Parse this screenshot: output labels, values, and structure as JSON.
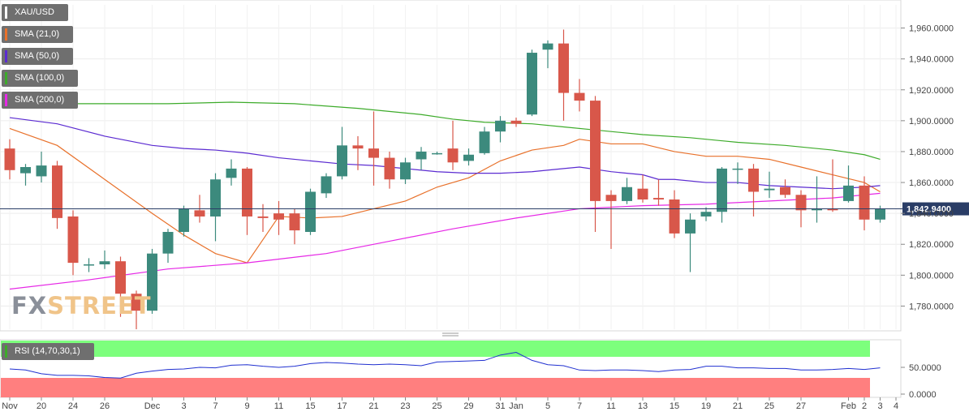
{
  "instrument": "XAU/USD",
  "indicators": [
    {
      "label": "SMA (21,0)",
      "color": "#e8712b"
    },
    {
      "label": "SMA (50,0)",
      "color": "#5b2bd1"
    },
    {
      "label": "SMA (100,0)",
      "color": "#3dab2a"
    },
    {
      "label": "SMA (200,0)",
      "color": "#e628e6"
    }
  ],
  "rsi": {
    "label": "RSI (14,70,30,1)",
    "overbought_color": "#7dff7d",
    "oversold_color": "#ff7f7f",
    "line_color": "#2030d0",
    "ticks": [
      "50.0000",
      "0.0000"
    ],
    "values": [
      47,
      45,
      38,
      35,
      35,
      34,
      31,
      30,
      39,
      43,
      46,
      47,
      50,
      49,
      54,
      55,
      52,
      50,
      52,
      57,
      59,
      58,
      56,
      55,
      56,
      55,
      53,
      60,
      61,
      62,
      63,
      73,
      78,
      63,
      55,
      53,
      45,
      44,
      45,
      45,
      44,
      42,
      45,
      46,
      52,
      52,
      49,
      49,
      48,
      48,
      45,
      45,
      46,
      48,
      46,
      49
    ]
  },
  "watermark": {
    "part1": "FX",
    "part2": "STREET"
  },
  "colors": {
    "up": "#3c8a7d",
    "down": "#d8574a",
    "price_line": "#2a3d66",
    "price_tag": "#2a3d66"
  },
  "chart_data": {
    "type": "candlestick",
    "title": "XAU/USD",
    "ylim": [
      1765,
      1975
    ],
    "y_ticks": [
      "1,960.0000",
      "1,940.0000",
      "1,920.0000",
      "1,900.0000",
      "1,880.0000",
      "1,860.0000",
      "1,840.0000",
      "1,820.0000",
      "1,800.0000",
      "1,780.0000"
    ],
    "x_tick_labels": [
      "Nov",
      "20",
      "24",
      "26",
      "Dec",
      "3",
      "7",
      "9",
      "11",
      "15",
      "17",
      "21",
      "23",
      "25",
      "29",
      "31",
      "Jan",
      "5",
      "7",
      "11",
      "13",
      "15",
      "19",
      "21",
      "25",
      "27",
      "Feb",
      "2",
      "3",
      "4"
    ],
    "current_price": 1842.94,
    "current_price_label": "1,842.9400",
    "candles": [
      {
        "o": 1882,
        "h": 1888,
        "l": 1862,
        "c": 1868
      },
      {
        "o": 1866,
        "h": 1872,
        "l": 1858,
        "c": 1870
      },
      {
        "o": 1864,
        "h": 1880,
        "l": 1860,
        "c": 1871
      },
      {
        "o": 1871,
        "h": 1874,
        "l": 1830,
        "c": 1837
      },
      {
        "o": 1838,
        "h": 1842,
        "l": 1800,
        "c": 1808
      },
      {
        "o": 1807,
        "h": 1811,
        "l": 1802,
        "c": 1807
      },
      {
        "o": 1807,
        "h": 1816,
        "l": 1804,
        "c": 1809
      },
      {
        "o": 1809,
        "h": 1812,
        "l": 1773,
        "c": 1788
      },
      {
        "o": 1788,
        "h": 1790,
        "l": 1765,
        "c": 1777
      },
      {
        "o": 1777,
        "h": 1817,
        "l": 1775,
        "c": 1814
      },
      {
        "o": 1814,
        "h": 1830,
        "l": 1808,
        "c": 1828
      },
      {
        "o": 1828,
        "h": 1845,
        "l": 1825,
        "c": 1843
      },
      {
        "o": 1842,
        "h": 1852,
        "l": 1834,
        "c": 1838
      },
      {
        "o": 1838,
        "h": 1866,
        "l": 1822,
        "c": 1862
      },
      {
        "o": 1863,
        "h": 1875,
        "l": 1858,
        "c": 1869
      },
      {
        "o": 1869,
        "h": 1870,
        "l": 1826,
        "c": 1838
      },
      {
        "o": 1838,
        "h": 1846,
        "l": 1828,
        "c": 1837
      },
      {
        "o": 1840,
        "h": 1848,
        "l": 1826,
        "c": 1836
      },
      {
        "o": 1840,
        "h": 1843,
        "l": 1820,
        "c": 1829
      },
      {
        "o": 1828,
        "h": 1856,
        "l": 1826,
        "c": 1854
      },
      {
        "o": 1853,
        "h": 1866,
        "l": 1850,
        "c": 1864
      },
      {
        "o": 1864,
        "h": 1896,
        "l": 1862,
        "c": 1884
      },
      {
        "o": 1884,
        "h": 1890,
        "l": 1868,
        "c": 1882
      },
      {
        "o": 1882,
        "h": 1906,
        "l": 1858,
        "c": 1876
      },
      {
        "o": 1876,
        "h": 1880,
        "l": 1856,
        "c": 1862
      },
      {
        "o": 1862,
        "h": 1876,
        "l": 1859,
        "c": 1873
      },
      {
        "o": 1875,
        "h": 1883,
        "l": 1868,
        "c": 1880
      },
      {
        "o": 1879,
        "h": 1880,
        "l": 1878,
        "c": 1879
      },
      {
        "o": 1882,
        "h": 1900,
        "l": 1868,
        "c": 1873
      },
      {
        "o": 1874,
        "h": 1882,
        "l": 1871,
        "c": 1878
      },
      {
        "o": 1879,
        "h": 1896,
        "l": 1878,
        "c": 1893
      },
      {
        "o": 1893,
        "h": 1903,
        "l": 1886,
        "c": 1900
      },
      {
        "o": 1900,
        "h": 1902,
        "l": 1896,
        "c": 1898
      },
      {
        "o": 1904,
        "h": 1946,
        "l": 1903,
        "c": 1944
      },
      {
        "o": 1946,
        "h": 1952,
        "l": 1934,
        "c": 1950
      },
      {
        "o": 1950,
        "h": 1959,
        "l": 1900,
        "c": 1918
      },
      {
        "o": 1918,
        "h": 1927,
        "l": 1906,
        "c": 1913
      },
      {
        "o": 1913,
        "h": 1916,
        "l": 1828,
        "c": 1848
      },
      {
        "o": 1852,
        "h": 1855,
        "l": 1817,
        "c": 1848
      },
      {
        "o": 1848,
        "h": 1863,
        "l": 1846,
        "c": 1857
      },
      {
        "o": 1856,
        "h": 1865,
        "l": 1847,
        "c": 1849
      },
      {
        "o": 1850,
        "h": 1862,
        "l": 1845,
        "c": 1849
      },
      {
        "o": 1849,
        "h": 1855,
        "l": 1824,
        "c": 1827
      },
      {
        "o": 1827,
        "h": 1840,
        "l": 1802,
        "c": 1836
      },
      {
        "o": 1838,
        "h": 1844,
        "l": 1835,
        "c": 1841
      },
      {
        "o": 1841,
        "h": 1870,
        "l": 1834,
        "c": 1869
      },
      {
        "o": 1869,
        "h": 1873,
        "l": 1859,
        "c": 1869
      },
      {
        "o": 1869,
        "h": 1872,
        "l": 1838,
        "c": 1854
      },
      {
        "o": 1855,
        "h": 1867,
        "l": 1850,
        "c": 1856
      },
      {
        "o": 1857,
        "h": 1862,
        "l": 1850,
        "c": 1852
      },
      {
        "o": 1852,
        "h": 1855,
        "l": 1831,
        "c": 1842
      },
      {
        "o": 1842,
        "h": 1864,
        "l": 1834,
        "c": 1843
      },
      {
        "o": 1843,
        "h": 1875,
        "l": 1841,
        "c": 1842
      },
      {
        "o": 1848,
        "h": 1871,
        "l": 1847,
        "c": 1858
      },
      {
        "o": 1858,
        "h": 1864,
        "l": 1829,
        "c": 1836
      },
      {
        "o": 1836,
        "h": 1845,
        "l": 1834,
        "c": 1843
      }
    ],
    "series": [
      {
        "name": "SMA (21,0)",
        "color": "#e8712b",
        "values": [
          [
            0,
            1895
          ],
          [
            3,
            1884
          ],
          [
            6,
            1862
          ],
          [
            9,
            1840
          ],
          [
            11,
            1826
          ],
          [
            13,
            1814
          ],
          [
            15,
            1808
          ],
          [
            17,
            1838
          ],
          [
            19,
            1837
          ],
          [
            21,
            1838
          ],
          [
            23,
            1843
          ],
          [
            25,
            1848
          ],
          [
            27,
            1857
          ],
          [
            29,
            1863
          ],
          [
            31,
            1874
          ],
          [
            33,
            1881
          ],
          [
            35,
            1884
          ],
          [
            36,
            1888
          ],
          [
            38,
            1885
          ],
          [
            40,
            1885
          ],
          [
            42,
            1880
          ],
          [
            44,
            1877
          ],
          [
            46,
            1877
          ],
          [
            48,
            1875
          ],
          [
            50,
            1870
          ],
          [
            52,
            1865
          ],
          [
            54,
            1860
          ],
          [
            55,
            1854
          ]
        ]
      },
      {
        "name": "SMA (50,0)",
        "color": "#5b2bd1",
        "values": [
          [
            0,
            1902
          ],
          [
            3,
            1898
          ],
          [
            6,
            1890
          ],
          [
            9,
            1884
          ],
          [
            11,
            1882
          ],
          [
            13,
            1881
          ],
          [
            15,
            1879
          ],
          [
            17,
            1876
          ],
          [
            19,
            1874
          ],
          [
            21,
            1872
          ],
          [
            23,
            1871
          ],
          [
            25,
            1869
          ],
          [
            27,
            1867
          ],
          [
            29,
            1866
          ],
          [
            31,
            1866
          ],
          [
            33,
            1867
          ],
          [
            35,
            1869
          ],
          [
            36,
            1870
          ],
          [
            38,
            1867
          ],
          [
            40,
            1865
          ],
          [
            41,
            1862
          ],
          [
            42,
            1862
          ],
          [
            44,
            1860
          ],
          [
            46,
            1860
          ],
          [
            48,
            1858
          ],
          [
            50,
            1857
          ],
          [
            52,
            1856
          ],
          [
            54,
            1857
          ],
          [
            55,
            1858
          ]
        ]
      },
      {
        "name": "SMA (100,0)",
        "color": "#3dab2a",
        "values": [
          [
            0,
            1911
          ],
          [
            5,
            1911
          ],
          [
            10,
            1911
          ],
          [
            14,
            1912
          ],
          [
            18,
            1911
          ],
          [
            22,
            1908
          ],
          [
            26,
            1904
          ],
          [
            28,
            1901
          ],
          [
            30,
            1899
          ],
          [
            33,
            1898
          ],
          [
            35,
            1896
          ],
          [
            37,
            1894
          ],
          [
            40,
            1891
          ],
          [
            43,
            1889
          ],
          [
            46,
            1886
          ],
          [
            49,
            1884
          ],
          [
            52,
            1881
          ],
          [
            54,
            1878
          ],
          [
            55,
            1875
          ]
        ]
      },
      {
        "name": "SMA (200,0)",
        "color": "#e628e6",
        "values": [
          [
            0,
            1791
          ],
          [
            5,
            1797
          ],
          [
            10,
            1804
          ],
          [
            15,
            1808
          ],
          [
            20,
            1814
          ],
          [
            24,
            1822
          ],
          [
            28,
            1830
          ],
          [
            32,
            1837
          ],
          [
            36,
            1843
          ],
          [
            40,
            1845
          ],
          [
            44,
            1846
          ],
          [
            48,
            1848
          ],
          [
            52,
            1850
          ],
          [
            55,
            1853
          ]
        ]
      }
    ]
  }
}
